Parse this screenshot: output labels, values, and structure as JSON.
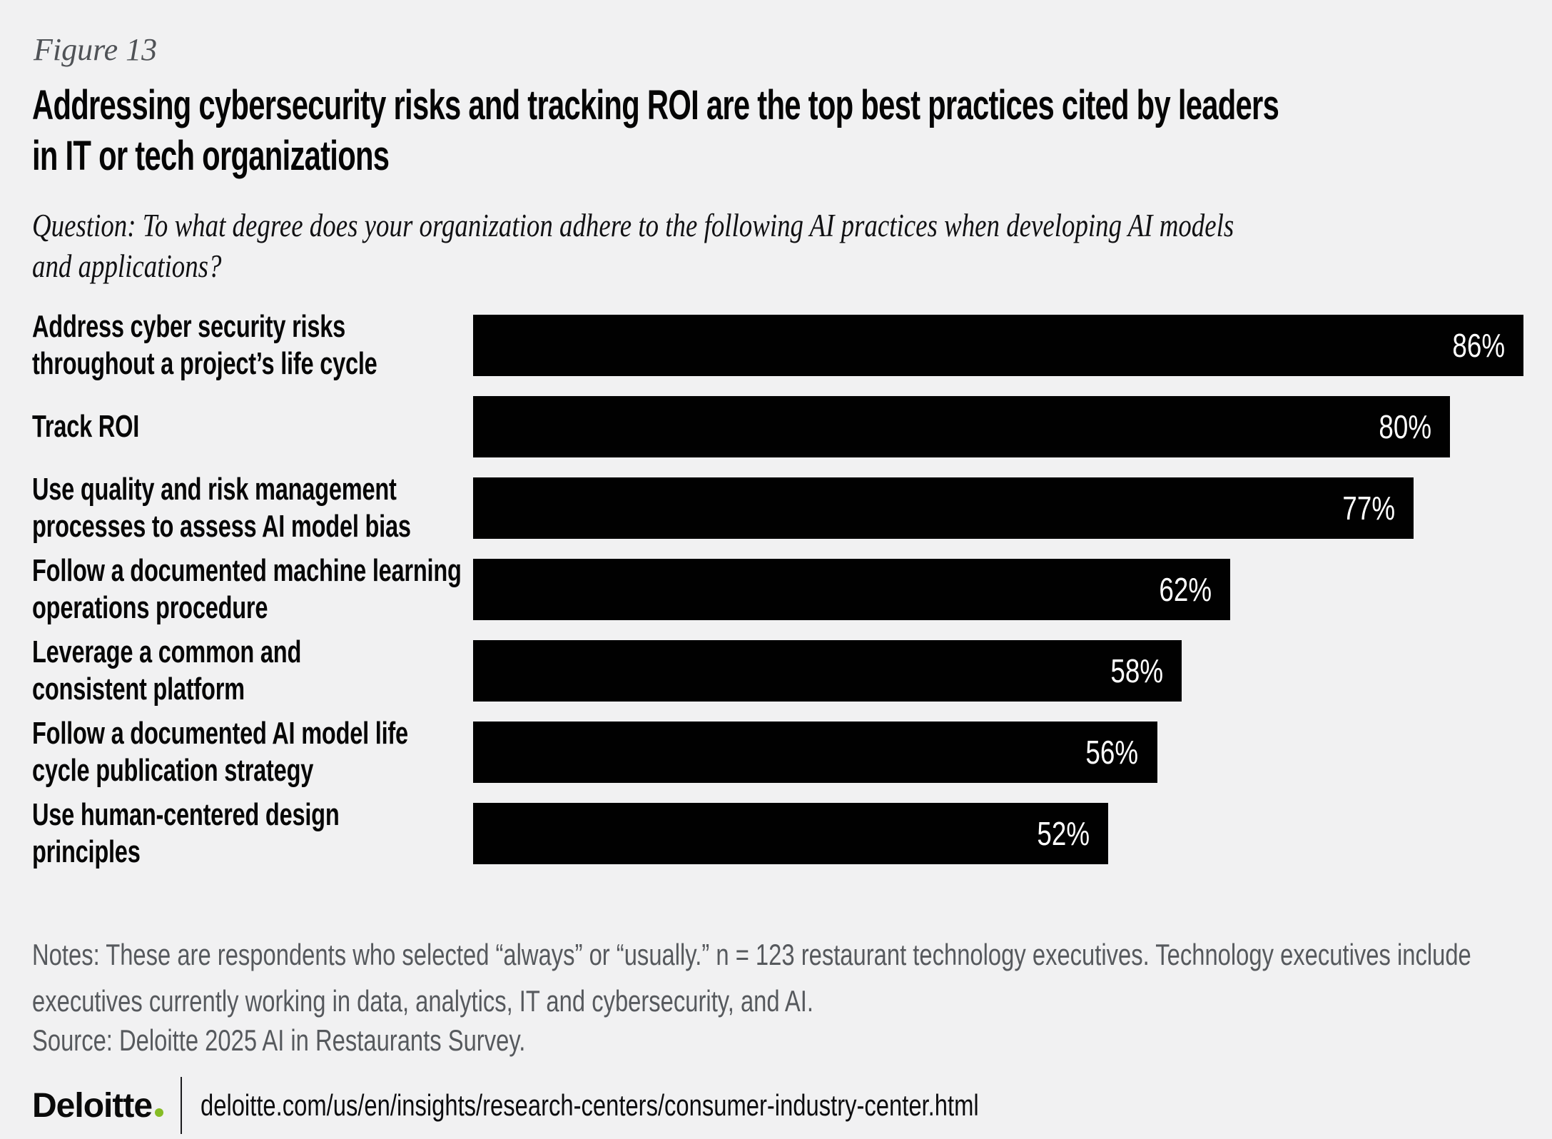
{
  "figure": {
    "label": "Figure 13"
  },
  "title": {
    "lines": [
      "Addressing cybersecurity risks and tracking ROI are the top best practices cited by leaders",
      "in IT or tech organizations"
    ]
  },
  "question": {
    "lines": [
      "Question: To what degree does your organization adhere to the following AI practices when developing AI models",
      "and applications?"
    ]
  },
  "chart_data": {
    "type": "bar",
    "orientation": "horizontal",
    "title": "Addressing cybersecurity risks and tracking ROI are the top best practices cited by leaders in IT or tech organizations",
    "categories": [
      "Address cyber security risks throughout a project’s life cycle",
      "Track ROI",
      "Use quality and risk management processes to assess AI model bias",
      "Follow a documented machine learning operations procedure",
      "Leverage a common and consistent platform",
      "Follow a documented AI model life cycle publication strategy",
      "Use human-centered design principles"
    ],
    "values": [
      86,
      80,
      77,
      62,
      58,
      56,
      52
    ],
    "value_labels": [
      "86%",
      "80%",
      "77%",
      "62%",
      "58%",
      "56%",
      "52%"
    ],
    "unit": "%",
    "xlim": [
      0,
      86
    ],
    "axis": "hidden",
    "grid": false,
    "legend": "none",
    "bar_color": "#010101",
    "value_label_color": "#FFFFFF",
    "background_color": "#F1F1F2"
  },
  "rows": [
    {
      "label_lines": [
        "Address cyber security risks",
        "throughout a project’s life cycle"
      ]
    },
    {
      "label_lines": [
        "Track ROI"
      ]
    },
    {
      "label_lines": [
        "Use quality and risk management",
        "processes to assess AI model bias"
      ]
    },
    {
      "label_lines": [
        "Follow a documented machine learning",
        "operations procedure"
      ]
    },
    {
      "label_lines": [
        "Leverage a common and",
        "consistent platform"
      ]
    },
    {
      "label_lines": [
        "Follow a documented AI model life",
        "cycle publication strategy"
      ]
    },
    {
      "label_lines": [
        "Use human-centered design",
        "principles"
      ]
    }
  ],
  "notes": {
    "lines": [
      "Notes: These are respondents who selected “always” or “usually.” n = 123 restaurant technology executives. Technology executives include",
      "executives currently working in data, analytics, IT and cybersecurity, and AI."
    ],
    "source": "Source: Deloitte 2025 AI in Restaurants Survey."
  },
  "footer": {
    "brand": "Deloitte",
    "accent_color": "#86BC25",
    "url": "deloitte.com/us/en/insights/research-centers/consumer-industry-center.html"
  }
}
